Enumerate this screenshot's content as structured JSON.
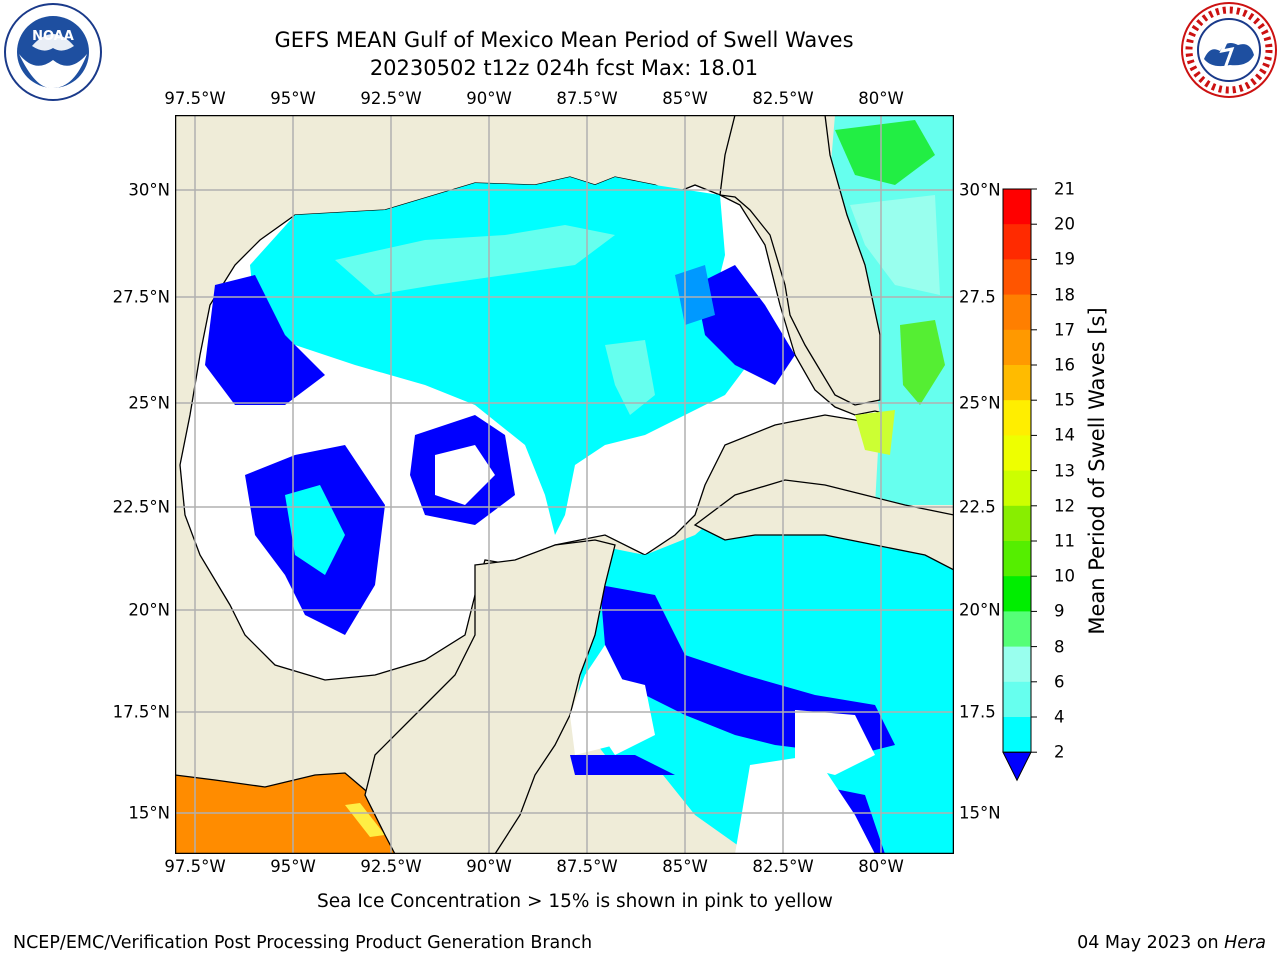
{
  "header": {
    "title_line1": "GEFS MEAN Gulf of Mexico Mean Period of Swell Waves",
    "title_line2": "20230502 t12z 024h fcst   Max: 18.01"
  },
  "logos": {
    "left": {
      "name": "NOAA",
      "ring_text": "NATIONAL OCEANIC AND ATMOSPHERIC ADMINISTRATION",
      "bottom_text": "U.S. DEPARTMENT OF COMMERCE"
    },
    "right": {
      "name": "NWS",
      "ring_text": "NATIONAL WEATHER SERVICE"
    }
  },
  "map": {
    "lon_ticks": [
      "97.5°W",
      "95°W",
      "92.5°W",
      "90°W",
      "87.5°W",
      "85°W",
      "82.5°W",
      "80°W"
    ],
    "lat_ticks_left": [
      "30°N",
      "27.5°N",
      "25°N",
      "22.5°N",
      "20°N",
      "17.5°N",
      "15°N"
    ],
    "lat_ticks_right": [
      "30°N",
      "27.5",
      "25°N",
      "22.5",
      "20°N",
      "17.5",
      "15°N"
    ],
    "land_color": "#efecd8",
    "grid_color": "#b0b0b0"
  },
  "colorbar": {
    "label": "Mean Period of Swell Waves [s]",
    "levels": [
      "21",
      "20",
      "19",
      "18",
      "17",
      "16",
      "15",
      "14",
      "13",
      "12",
      "11",
      "10",
      "9",
      "8",
      "6",
      "4",
      "2"
    ],
    "colors": [
      "#ff0000",
      "#ff2a00",
      "#ff5500",
      "#ff7f00",
      "#ff9900",
      "#ffbb00",
      "#ffee00",
      "#eeff00",
      "#ccff00",
      "#88ee00",
      "#55ee00",
      "#00ee00",
      "#55ff77",
      "#99ffee",
      "#66ffee",
      "#00ffff",
      "#0099ff",
      "#0000ff"
    ]
  },
  "footnote": "Sea Ice Concentration > 15% is shown in pink to yellow",
  "footer": {
    "left": "NCEP/EMC/Verification Post Processing Product Generation Branch",
    "right_prefix": "04 May 2023 on ",
    "right_host": "Hera"
  }
}
